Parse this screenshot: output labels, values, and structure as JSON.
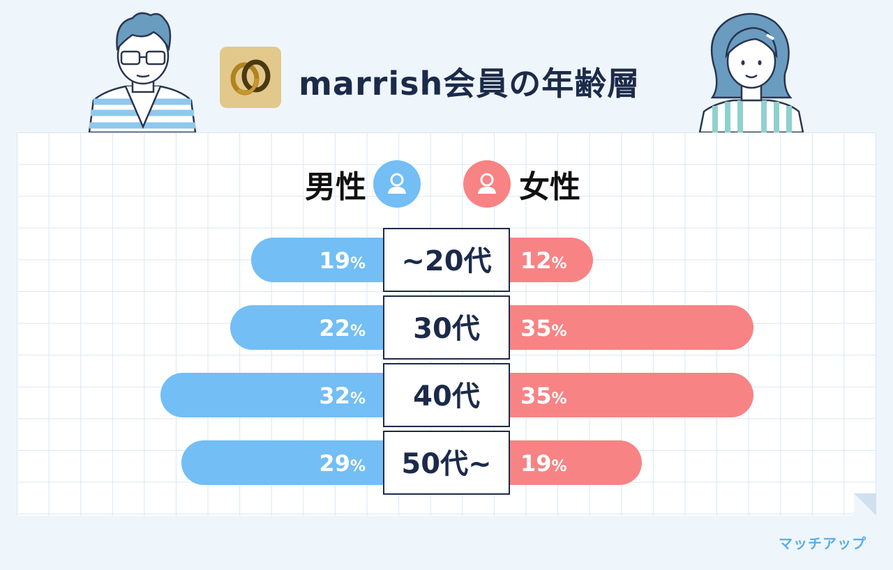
{
  "header": {
    "title": "marrish会員の年齢層"
  },
  "legend": {
    "male_label": "男性",
    "female_label": "女性"
  },
  "watermark": {
    "text": "マッチアップ"
  },
  "icons": {
    "app_logo": "marrish-rings-logo",
    "male": "user-icon",
    "female": "user-icon"
  },
  "colors": {
    "male": "#72bef5",
    "female": "#f88384",
    "text_dark": "#1c2a4a",
    "label_box_border": "#1c2a4a"
  },
  "chart_data": {
    "type": "bar",
    "categories": [
      "~20代",
      "30代",
      "40代",
      "50代~"
    ],
    "series": [
      {
        "name": "男性",
        "values": [
          19,
          22,
          32,
          29
        ],
        "labels": [
          "19%",
          "22%",
          "32%",
          "29%"
        ]
      },
      {
        "name": "女性",
        "values": [
          12,
          35,
          35,
          19
        ],
        "labels": [
          "12%",
          "35%",
          "35%",
          "19%"
        ]
      }
    ],
    "unit": "%",
    "orientation": "horizontal-butterfly",
    "grid": true
  }
}
